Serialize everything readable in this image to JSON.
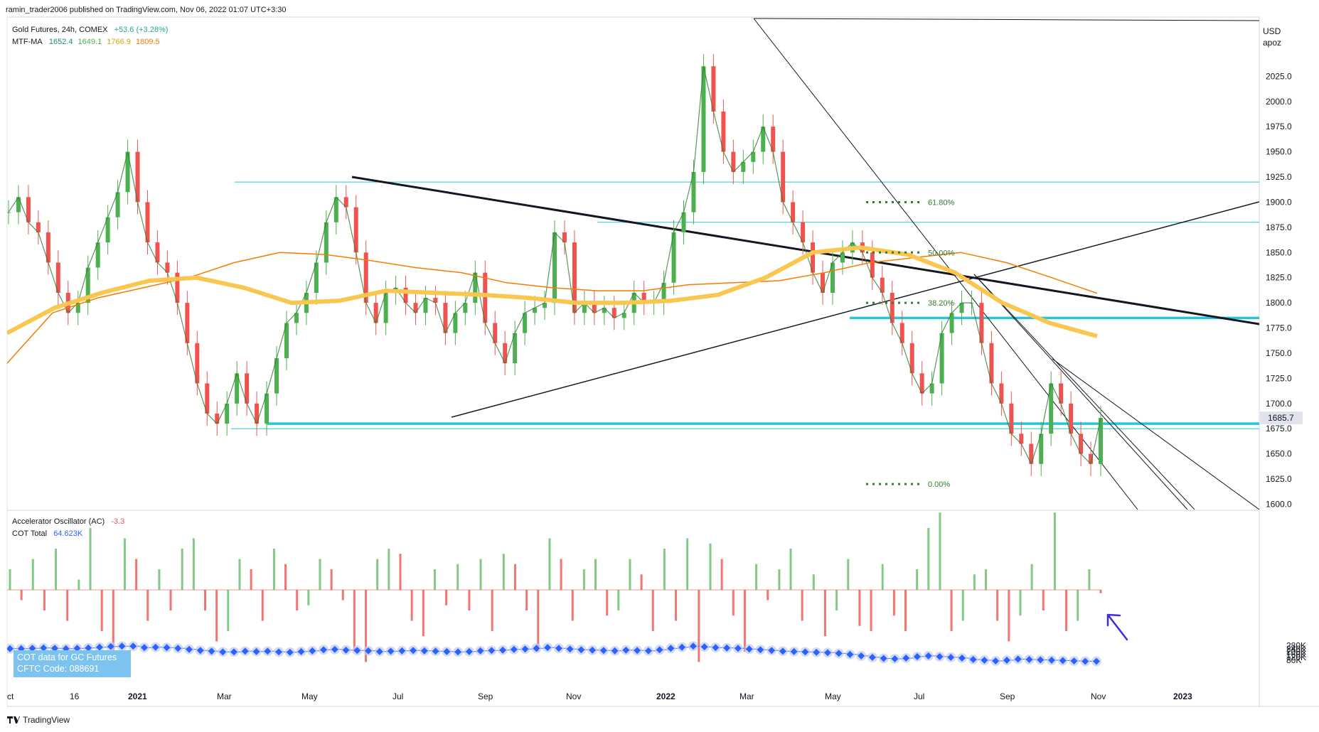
{
  "header": {
    "published_text": "ramin_trader2006 published on TradingView.com, Nov 06, 2022 01:07 UTC+3:30"
  },
  "legend": {
    "symbol": "Gold Futures, 24h, COMEX",
    "change": "+53.6 (+3.28%)",
    "ma_label": "MTF-MA",
    "ma_values": [
      {
        "value": "1652.4",
        "color": "#1e8c7a"
      },
      {
        "value": "1649.1",
        "color": "#4caf50"
      },
      {
        "value": "1766.9",
        "color": "#f2b01e"
      },
      {
        "value": "1809.5",
        "color": "#f57c00"
      }
    ]
  },
  "oscillator_legend": {
    "ao_label": "Accelerator Oscillator (AC)",
    "ao_value": "-3.3",
    "cot_label": "COT Total",
    "cot_value": "64.623K"
  },
  "cot_note": {
    "line1": "COT data for GC Futures",
    "line2": "CFTC Code: 088691"
  },
  "price_axis": {
    "currency": "USD",
    "mode": "apoz",
    "last_price": "1685.7"
  },
  "footer": {
    "brand": "TradingView"
  },
  "chart_data": [
    {
      "type": "line",
      "title": "Gold Futures, 24h, COMEX",
      "ylabel": "USD",
      "ylim": [
        1600,
        2055
      ],
      "x_ticks": [
        "ct",
        "16",
        "2021",
        "Mar",
        "May",
        "Jul",
        "Sep",
        "Nov",
        "2022",
        "Mar",
        "May",
        "Jul",
        "Sep",
        "Nov",
        "2023"
      ],
      "y_ticks": [
        1600,
        1625,
        1650,
        1675,
        1700,
        1725,
        1750,
        1775,
        1800,
        1825,
        1850,
        1875,
        1900,
        1925,
        1950,
        1975,
        2000,
        2025
      ],
      "series": [
        {
          "name": "Close",
          "values": [
            1890,
            1905,
            1880,
            1870,
            1840,
            1810,
            1790,
            1800,
            1835,
            1860,
            1885,
            1910,
            1950,
            1900,
            1860,
            1840,
            1830,
            1800,
            1760,
            1720,
            1690,
            1680,
            1700,
            1730,
            1700,
            1680,
            1710,
            1745,
            1780,
            1790,
            1810,
            1840,
            1880,
            1905,
            1895,
            1850,
            1800,
            1780,
            1810,
            1815,
            1800,
            1790,
            1805,
            1800,
            1770,
            1790,
            1800,
            1830,
            1780,
            1760,
            1740,
            1770,
            1790,
            1795,
            1800,
            1870,
            1860,
            1790,
            1800,
            1790,
            1795,
            1785,
            1790,
            1810,
            1800,
            1800,
            1820,
            1870,
            1890,
            1930,
            2035,
            1990,
            1950,
            1930,
            1940,
            1950,
            1975,
            1950,
            1900,
            1880,
            1860,
            1830,
            1810,
            1840,
            1850,
            1860,
            1850,
            1825,
            1810,
            1780,
            1760,
            1730,
            1710,
            1720,
            1770,
            1790,
            1800,
            1800,
            1760,
            1720,
            1700,
            1670,
            1660,
            1640,
            1670,
            1720,
            1700,
            1670,
            1650,
            1640,
            1685.7
          ]
        },
        {
          "name": "MA 200",
          "values": [
            1740,
            1790,
            1805,
            1815,
            1825,
            1840,
            1850,
            1848,
            1842,
            1835,
            1830,
            1820,
            1815,
            1812,
            1812,
            1818,
            1820,
            1822,
            1830,
            1840,
            1845,
            1850,
            1840,
            1825,
            1809.5
          ]
        },
        {
          "name": "MA 100",
          "values": [
            1770,
            1795,
            1810,
            1822,
            1825,
            1815,
            1800,
            1802,
            1812,
            1810,
            1808,
            1805,
            1800,
            1800,
            1802,
            1808,
            1825,
            1850,
            1855,
            1848,
            1830,
            1800,
            1780,
            1766.9
          ]
        }
      ],
      "horizontal_levels": [
        1920,
        1880,
        1785,
        1680,
        1675
      ],
      "fibonacci": [
        {
          "label": "61.80%",
          "price": 1900
        },
        {
          "label": "50.00%",
          "price": 1850
        },
        {
          "label": "38.20%",
          "price": 1800
        },
        {
          "label": "0.00%",
          "price": 1620
        }
      ]
    },
    {
      "type": "bar",
      "title": "Accelerator Oscillator (AC) / COT Total",
      "ylim": [
        60000,
        290000
      ],
      "y_ticks": [
        "80K",
        "120K",
        "160K",
        "200K",
        "240K",
        "280K"
      ],
      "series": [
        {
          "name": "COT Total",
          "values": [
            240,
            240,
            245,
            250,
            245,
            240,
            245,
            250,
            260,
            270,
            275,
            275,
            255,
            260,
            255,
            245,
            230,
            215,
            205,
            195,
            195,
            205,
            200,
            205,
            195,
            190,
            200,
            210,
            225,
            230,
            220,
            215,
            210,
            200,
            205,
            210,
            215,
            210,
            205,
            200,
            195,
            200,
            210,
            215,
            220,
            230,
            235,
            245,
            255,
            245,
            235,
            225,
            220,
            215,
            210,
            220,
            215,
            210,
            225,
            245,
            260,
            275,
            265,
            255,
            250,
            245,
            235,
            225,
            215,
            205,
            200,
            195,
            190,
            185,
            175,
            160,
            140,
            120,
            105,
            100,
            110,
            130,
            140,
            130,
            120,
            110,
            90,
            80,
            70,
            80,
            95,
            90,
            85,
            80,
            75,
            70,
            65,
            64.623
          ]
        },
        {
          "name": "Accelerator Oscillator (AC)",
          "values": [
            20,
            -10,
            30,
            -20,
            40,
            -30,
            10,
            60,
            -40,
            -70,
            50,
            30,
            -30,
            20,
            -20,
            40,
            50,
            -20,
            -50,
            -40,
            30,
            20,
            -30,
            40,
            25,
            -20,
            -15,
            30,
            20,
            -10,
            -60,
            -70,
            30,
            40,
            35,
            -30,
            -45,
            20,
            -15,
            25,
            -20,
            30,
            -40,
            35,
            25,
            -20,
            -60,
            50,
            30,
            -30,
            20,
            30,
            -25,
            -20,
            30,
            15,
            -40,
            40,
            -30,
            50,
            -70,
            45,
            30,
            -25,
            -60,
            25,
            -10,
            20,
            40,
            -30,
            15,
            -45,
            -20,
            30,
            -35,
            -40,
            25,
            -25,
            -40,
            20,
            60,
            75,
            -40,
            -30,
            15,
            20,
            -30,
            -50,
            -25,
            25,
            -20,
            75,
            -40,
            -30,
            20,
            -3.3
          ]
        }
      ]
    }
  ]
}
